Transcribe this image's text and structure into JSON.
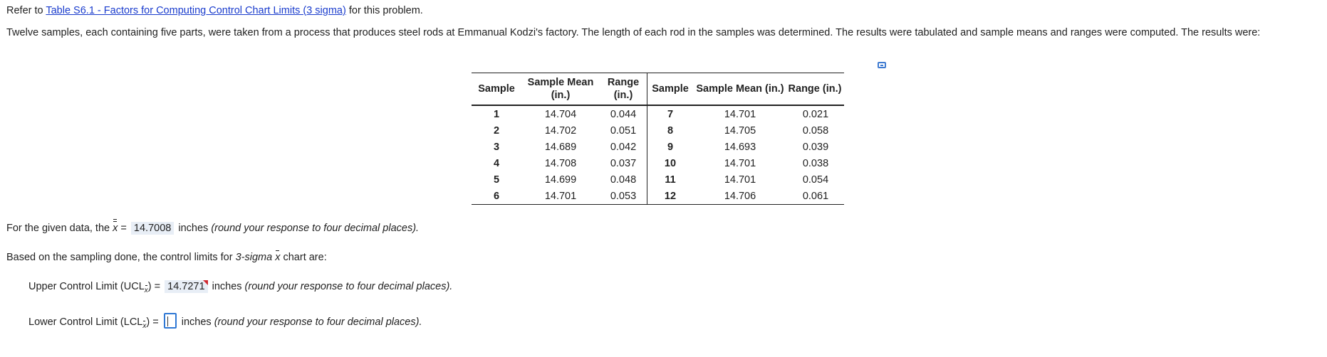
{
  "intro": {
    "prefix": "Refer to ",
    "link": "Table S6.1 - Factors for Computing Control Chart Limits (3 sigma)",
    "suffix": " for this problem."
  },
  "problem_text": "Twelve samples, each containing five parts, were taken from a process that produces steel rods at Emmanual Kodzi's factory. The length of each rod in the samples was determined. The results were tabulated and sample means and ranges were computed. The results were:",
  "table": {
    "headers": {
      "sample": "Sample",
      "mean_line1": "Sample Mean",
      "mean_line2": "(in.)",
      "range_line1": "Range",
      "range_line2": "(in.)",
      "sample2": "Sample",
      "mean2": "Sample Mean (in.)",
      "range2": "Range (in.)"
    },
    "rows": [
      {
        "s1": "1",
        "m1": "14.704",
        "r1": "0.044",
        "s2": "7",
        "m2": "14.701",
        "r2": "0.021"
      },
      {
        "s1": "2",
        "m1": "14.702",
        "r1": "0.051",
        "s2": "8",
        "m2": "14.705",
        "r2": "0.058"
      },
      {
        "s1": "3",
        "m1": "14.689",
        "r1": "0.042",
        "s2": "9",
        "m2": "14.693",
        "r2": "0.039"
      },
      {
        "s1": "4",
        "m1": "14.708",
        "r1": "0.037",
        "s2": "10",
        "m2": "14.701",
        "r2": "0.038"
      },
      {
        "s1": "5",
        "m1": "14.699",
        "r1": "0.048",
        "s2": "11",
        "m2": "14.701",
        "r2": "0.054"
      },
      {
        "s1": "6",
        "m1": "14.701",
        "r1": "0.053",
        "s2": "12",
        "m2": "14.706",
        "r2": "0.061"
      }
    ]
  },
  "xbarbar_line": {
    "prefix": "For the given data, the ",
    "symbol": "x",
    "equals": " = ",
    "value": "14.7008",
    "unit": " inches ",
    "hint": "(round your response to four decimal places)."
  },
  "limits_intro": {
    "prefix": "Based on the sampling done, the control limits for ",
    "sigma": "3-sigma",
    "symbol": "x",
    "suffix": " chart are:"
  },
  "ucl": {
    "label": "Upper Control Limit (UCL",
    "sub": "x",
    "close": ") = ",
    "value": "14.7271",
    "unit": " inches ",
    "hint": "(round your response to four decimal places)."
  },
  "lcl": {
    "label": "Lower Control Limit (LCL",
    "sub": "x",
    "close": ") = ",
    "value": "",
    "unit": " inches ",
    "hint": "(round your response to four decimal places)."
  }
}
